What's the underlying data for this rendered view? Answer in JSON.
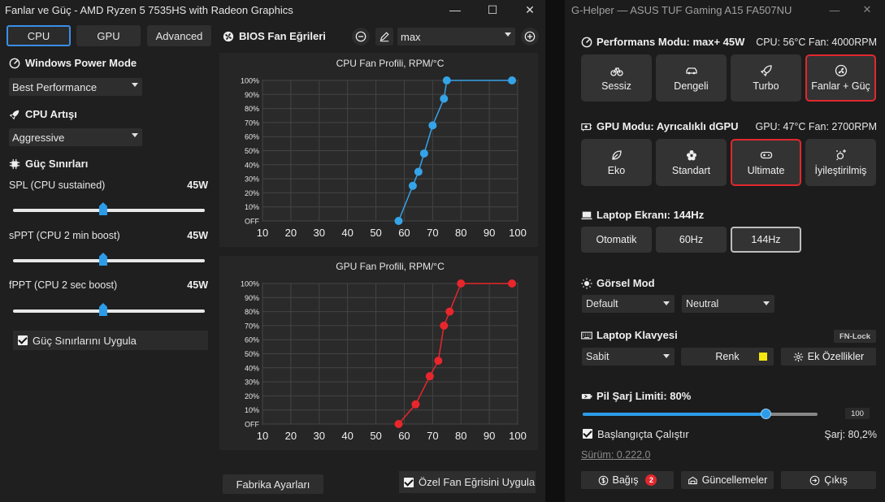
{
  "colors": {
    "accent_blue": "#2d9ce8",
    "accent_red": "#e0282e",
    "cpu_series": "#35a3e8",
    "gpu_series": "#e8262c",
    "swatch": "#f5e511"
  },
  "fan_window": {
    "title": "Fanlar ve Güç - AMD Ryzen 5 7535HS with Radeon Graphics",
    "controls": {
      "minimize": "—",
      "maximize": "☐",
      "close": "✕"
    },
    "tabs": [
      {
        "label": "CPU"
      },
      {
        "label": "GPU"
      },
      {
        "label": "Advanced"
      }
    ],
    "power_mode": {
      "title": "Windows Power Mode",
      "value": "Best Performance"
    },
    "cpu_boost": {
      "title": "CPU Artışı",
      "value": "Aggressive"
    },
    "power_limits": {
      "title": "Güç Sınırları",
      "sliders": [
        {
          "label": "SPL (CPU sustained)",
          "value": "45W",
          "fraction": 0.47
        },
        {
          "label": "sPPT (CPU 2 min boost)",
          "value": "45W",
          "fraction": 0.47
        },
        {
          "label": "fPPT (CPU 2 sec boost)",
          "value": "45W",
          "fraction": 0.47
        }
      ],
      "apply_label": "Güç Sınırlarını Uygula"
    },
    "bios": {
      "title": "BIOS Fan Eğrileri",
      "mode": "max"
    },
    "factory_label": "Fabrika Ayarları",
    "apply_fan_label": "Özel Fan Eğrisini Uygula"
  },
  "chart_data": [
    {
      "type": "line",
      "title": "CPU Fan Profili, RPM/°C",
      "x_ticks": [
        "10",
        "20",
        "30",
        "40",
        "50",
        "60",
        "70",
        "80",
        "90",
        "100"
      ],
      "y_ticks": [
        "OFF",
        "10%",
        "20%",
        "30%",
        "40%",
        "50%",
        "60%",
        "70%",
        "80%",
        "90%",
        "100%"
      ],
      "xlim": [
        10,
        100
      ],
      "ylim": [
        0,
        100
      ],
      "grid": true,
      "series": [
        {
          "color": "#35a3e8",
          "x": [
            58,
            63,
            65,
            67,
            70,
            74,
            75,
            98
          ],
          "y": [
            0,
            25,
            35,
            48,
            68,
            87,
            100,
            100
          ]
        }
      ]
    },
    {
      "type": "line",
      "title": "GPU Fan Profili, RPM/°C",
      "x_ticks": [
        "10",
        "20",
        "30",
        "40",
        "50",
        "60",
        "70",
        "80",
        "90",
        "100"
      ],
      "y_ticks": [
        "OFF",
        "10%",
        "20%",
        "30%",
        "40%",
        "50%",
        "60%",
        "70%",
        "80%",
        "90%",
        "100%"
      ],
      "xlim": [
        10,
        100
      ],
      "ylim": [
        0,
        100
      ],
      "grid": true,
      "series": [
        {
          "color": "#e8262c",
          "x": [
            58,
            64,
            69,
            72,
            74,
            76,
            80,
            98
          ],
          "y": [
            0,
            14,
            34,
            45,
            70,
            80,
            100,
            100
          ]
        }
      ]
    }
  ],
  "ghelper": {
    "title": "G-Helper — ASUS TUF Gaming A15 FA507NU",
    "performance": {
      "title": "Performans Modu: max+ 45W",
      "status": "CPU: 56°C Fan: 4000RPM",
      "buttons": [
        {
          "label": "Sessiz",
          "icon": "bicycle-icon"
        },
        {
          "label": "Dengeli",
          "icon": "car-icon"
        },
        {
          "label": "Turbo",
          "icon": "rocket-icon"
        },
        {
          "label": "Fanlar + Güç",
          "icon": "fan-icon",
          "active": true
        }
      ]
    },
    "gpu": {
      "title": "GPU Modu: Ayrıcalıklı dGPU",
      "status": "GPU: 47°C Fan: 2700RPM",
      "buttons": [
        {
          "label": "Eko",
          "icon": "leaf-icon"
        },
        {
          "label": "Standart",
          "icon": "flower-icon"
        },
        {
          "label": "Ultimate",
          "icon": "gamepad-icon",
          "active": true
        },
        {
          "label": "İyileştirilmiş",
          "icon": "sparkle-icon"
        }
      ]
    },
    "screen": {
      "title": "Laptop Ekranı: 144Hz",
      "buttons": [
        {
          "label": "Otomatik"
        },
        {
          "label": "60Hz"
        },
        {
          "label": "144Hz",
          "active": true
        }
      ]
    },
    "visual": {
      "title": "Görsel Mod",
      "mode": "Default",
      "gamut": "Neutral"
    },
    "keyboard": {
      "title": "Laptop Klavyesi",
      "fn_lock": "FN-Lock",
      "mode": "Sabit",
      "color_label": "Renk",
      "extra_label": "Ek Özellikler"
    },
    "battery": {
      "title": "Pil Şarj Limiti: 80%",
      "limit_value": "100",
      "fraction": 0.78,
      "startup_label": "Başlangıçta Çalıştır",
      "charge": "Şarj: 80,2%"
    },
    "version": "Sürüm: 0.222.0",
    "footer": {
      "donate": "Bağış",
      "donate_badge": "2",
      "updates": "Güncellemeler",
      "quit": "Çıkış"
    }
  }
}
